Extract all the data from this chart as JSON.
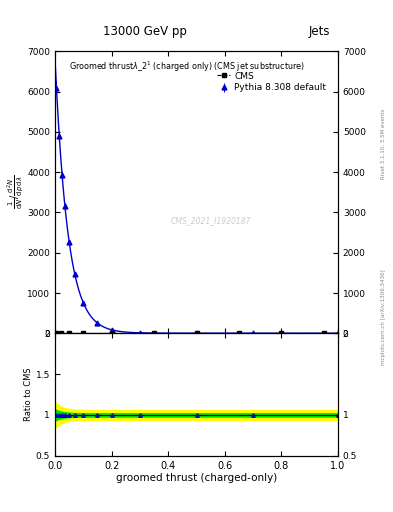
{
  "title_top": "13000 GeV pp",
  "title_right": "Jets",
  "right_label": "Rivet 3.1.10, 3.5M events",
  "right_label2": "mcplots.cern.ch [arXiv:1306.3436]",
  "plot_title": "Groomed thrust$\\lambda$_2$^1$ (charged only) (CMS jet substructure)",
  "cms_label": "CMS",
  "pythia_label": "Pythia 8.308 default",
  "watermark": "CMS_2021_I1920187",
  "xlabel": "groomed thrust (charged-only)",
  "ylabel": "$\\frac{1}{\\mathrm{d}N} / \\frac{\\mathrm{d}^2N}{\\mathrm{d}p\\,\\mathrm{d}\\lambda}$",
  "ylabel_ratio": "Ratio to CMS",
  "xlim": [
    0,
    1
  ],
  "ylim_main": [
    0,
    7000
  ],
  "ylim_ratio": [
    0.5,
    2.0
  ],
  "yticks_main": [
    0,
    1000,
    2000,
    3000,
    4000,
    5000,
    6000,
    7000
  ],
  "ytick_labels_main": [
    "0",
    "1000",
    "2000",
    "3000",
    "4000",
    "5000",
    "6000",
    "7000"
  ],
  "yticks_ratio": [
    0.5,
    1.0,
    1.5,
    2.0
  ],
  "ytick_labels_ratio": [
    "0.5",
    "1",
    "1.5",
    "2"
  ],
  "line_color_pythia": "#0000cc",
  "marker_color_cms": "#000000",
  "green_band_color": "#00dd00",
  "yellow_band_color": "#ffff00",
  "green_band_half": 0.02,
  "yellow_band_half": 0.06
}
